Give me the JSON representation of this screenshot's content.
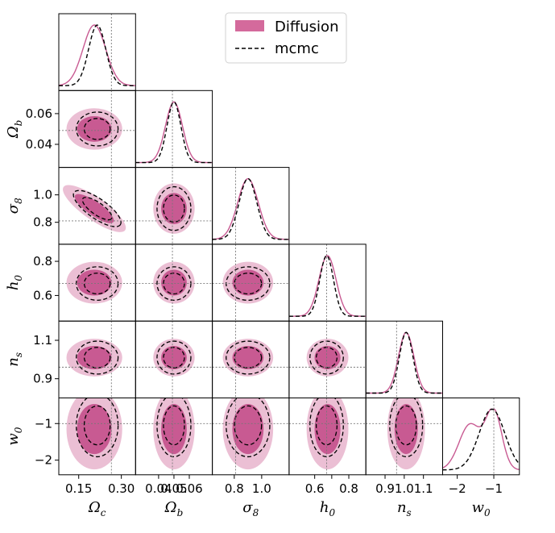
{
  "chart_data": {
    "type": "corner",
    "parameters": [
      {
        "key": "Omega_c",
        "label": "Ω",
        "sub": "c",
        "range": [
          0.08,
          0.35
        ],
        "ticks": [
          0.15,
          0.3
        ],
        "tick_labels": [
          "0.15",
          "0.30"
        ],
        "truth": 0.265,
        "diff_mean": 0.205,
        "diff_sd": 0.04,
        "mcmc_mean": 0.215,
        "mcmc_sd": 0.03
      },
      {
        "key": "Omega_b",
        "label": "Ω",
        "sub": "b",
        "range": [
          0.025,
          0.075
        ],
        "ticks": [
          0.04,
          0.05,
          0.06
        ],
        "tick_labels": [
          "0.04",
          "0.05",
          "0.06"
        ],
        "truth": 0.049,
        "diff_mean": 0.05,
        "diff_sd": 0.0055,
        "mcmc_mean": 0.05,
        "mcmc_sd": 0.0045
      },
      {
        "key": "sigma_8",
        "label": "σ",
        "sub": "8",
        "range": [
          0.64,
          1.2
        ],
        "ticks": [
          0.8,
          1.0
        ],
        "tick_labels": [
          "0.8",
          "1.0"
        ],
        "truth": 0.81,
        "diff_mean": 0.9,
        "diff_sd": 0.075,
        "mcmc_mean": 0.9,
        "mcmc_sd": 0.065
      },
      {
        "key": "h_0",
        "label": "h",
        "sub": "0",
        "range": [
          0.45,
          0.9
        ],
        "ticks": [
          0.6,
          0.7,
          0.8
        ],
        "tick_labels": [
          "0.6",
          "",
          "0.8"
        ],
        "truth": 0.67,
        "diff_mean": 0.675,
        "diff_sd": 0.05,
        "mcmc_mean": 0.67,
        "mcmc_sd": 0.04
      },
      {
        "key": "n_s",
        "label": "n",
        "sub": "s",
        "range": [
          0.8,
          1.2
        ],
        "ticks": [
          0.9,
          1.0,
          1.1
        ],
        "tick_labels": [
          "0.9",
          "1.0",
          "1.1"
        ],
        "truth": 0.96,
        "diff_mean": 1.01,
        "diff_sd": 0.04,
        "mcmc_mean": 1.01,
        "mcmc_sd": 0.035
      },
      {
        "key": "w_0",
        "label": "w",
        "sub": "0",
        "range": [
          -2.4,
          -0.3
        ],
        "ticks": [
          -2,
          -1
        ],
        "tick_labels": [
          "−2",
          "−1"
        ],
        "truth": -1.0,
        "diff_mean": -1.15,
        "diff_sd": 0.45,
        "mcmc_mean": -1.05,
        "mcmc_sd": 0.35
      }
    ],
    "y_tick_labels": {
      "Omega_b": [
        "0.04",
        "0.06"
      ],
      "sigma_8": [
        "0.8",
        "1.0"
      ],
      "h_0": [
        "0.6",
        "0.8"
      ],
      "n_s": [
        "0.9",
        "1.1"
      ],
      "w_0": [
        "−2",
        "−1"
      ]
    },
    "y_ticks": {
      "Omega_b": [
        0.04,
        0.06
      ],
      "sigma_8": [
        0.8,
        1.0
      ],
      "h_0": [
        0.6,
        0.8
      ],
      "n_s": [
        0.9,
        1.1
      ],
      "w_0": [
        -2,
        -1
      ]
    },
    "correlations": {
      "0_2": -0.85
    },
    "series": [
      {
        "name": "Diffusion",
        "style": "filled",
        "color_inner": "#c85a92",
        "color_outer": "#e8b4cc",
        "line": "#c85a92"
      },
      {
        "name": "mcmc",
        "style": "dashed",
        "color": "#000000"
      }
    ],
    "legend": {
      "position": "top-center"
    },
    "truth_line_color": "#777777"
  }
}
